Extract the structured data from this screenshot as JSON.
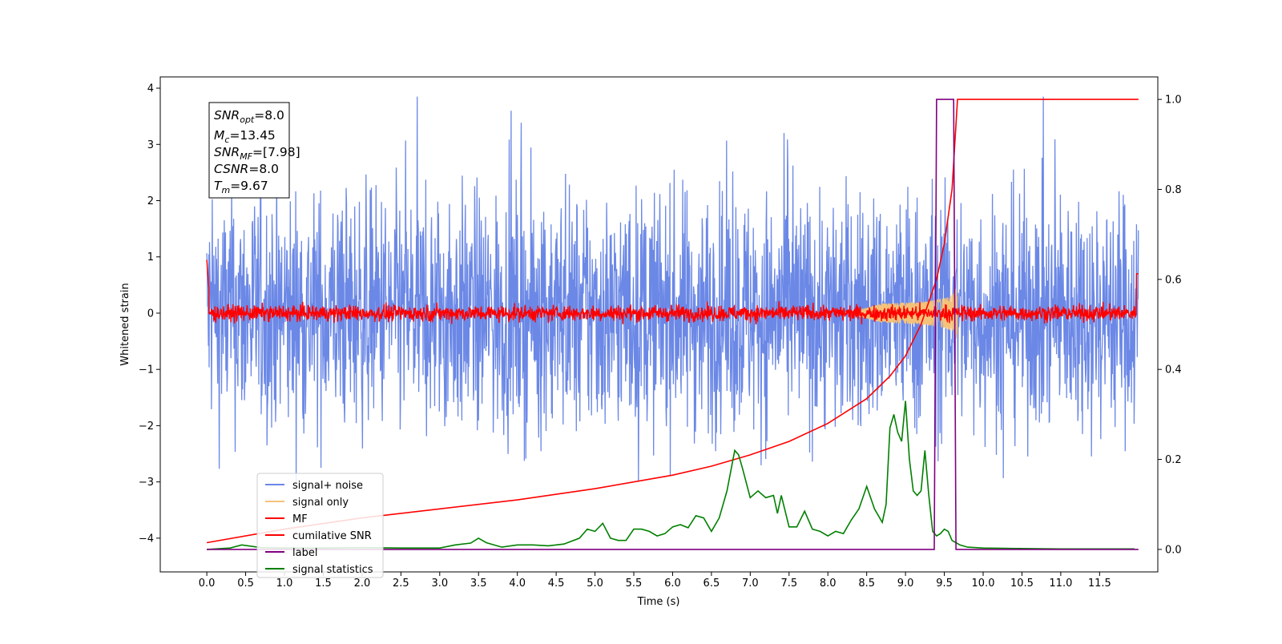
{
  "chart_data": {
    "type": "line",
    "xlabel": "Time (s)",
    "ylabel": "Whitened strain",
    "xlim": [
      -0.6,
      12.25
    ],
    "ylim": [
      -4.6,
      4.2
    ],
    "y2lim": [
      -0.05,
      1.05
    ],
    "x_ticks": [
      "0.0",
      "0.5",
      "1.0",
      "1.5",
      "2.0",
      "2.5",
      "3.0",
      "3.5",
      "4.0",
      "4.5",
      "5.0",
      "5.5",
      "6.0",
      "6.5",
      "7.0",
      "7.5",
      "8.0",
      "8.5",
      "9.0",
      "9.5",
      "10.0",
      "10.5",
      "11.0",
      "11.5"
    ],
    "y_ticks": [
      "4",
      "3",
      "2",
      "1",
      "0",
      "−1",
      "−2",
      "−3",
      "−4"
    ],
    "y2_ticks": [
      "1.0",
      "0.8",
      "0.6",
      "0.4",
      "0.2",
      "0.0"
    ],
    "legend_position": "lower-left",
    "grid": false,
    "series": [
      {
        "name": "signal+ noise",
        "color": "#6b88e6",
        "axis": "left",
        "kind": "noise",
        "x_range": [
          0.0,
          12.0
        ],
        "envelope": [
          -2.3,
          2.3
        ],
        "peak_range": [
          -4.0,
          3.85
        ]
      },
      {
        "name": "signal only",
        "color": "#f5c27a",
        "axis": "left",
        "kind": "chirp",
        "x_range": [
          8.3,
          9.67
        ],
        "amplitude_at_merger": 0.68
      },
      {
        "name": "MF",
        "color": "#ff0000",
        "axis": "left",
        "kind": "noise",
        "x_range": [
          0.0,
          12.0
        ],
        "envelope": [
          -0.18,
          0.2
        ]
      },
      {
        "name": "cumilative SNR",
        "color": "#ff0000",
        "axis": "right",
        "x": [
          0.0,
          1.0,
          2.0,
          3.0,
          4.0,
          5.0,
          6.0,
          6.5,
          7.0,
          7.5,
          8.0,
          8.5,
          8.8,
          9.0,
          9.2,
          9.4,
          9.5,
          9.6,
          9.67,
          10.0,
          11.0,
          12.0
        ],
        "y": [
          0.015,
          0.045,
          0.07,
          0.09,
          0.11,
          0.135,
          0.165,
          0.185,
          0.21,
          0.24,
          0.28,
          0.335,
          0.385,
          0.43,
          0.5,
          0.6,
          0.68,
          0.8,
          1.0,
          1.0,
          1.0,
          1.0
        ]
      },
      {
        "name": "label",
        "color": "#800080",
        "axis": "right",
        "x": [
          0.0,
          9.37,
          9.4,
          9.62,
          9.65,
          12.0
        ],
        "y": [
          0.0,
          0.0,
          1.0,
          1.0,
          0.0,
          0.0
        ]
      },
      {
        "name": "signal statistics",
        "color": "#008000",
        "axis": "right",
        "x": [
          0.0,
          0.3,
          0.45,
          0.7,
          1.0,
          1.5,
          2.0,
          2.5,
          3.0,
          3.2,
          3.4,
          3.5,
          3.6,
          3.8,
          4.0,
          4.2,
          4.4,
          4.6,
          4.8,
          4.9,
          5.0,
          5.1,
          5.2,
          5.3,
          5.4,
          5.5,
          5.6,
          5.7,
          5.8,
          5.9,
          6.0,
          6.1,
          6.2,
          6.3,
          6.4,
          6.5,
          6.6,
          6.7,
          6.8,
          6.85,
          6.9,
          7.0,
          7.1,
          7.2,
          7.3,
          7.35,
          7.4,
          7.5,
          7.6,
          7.7,
          7.8,
          7.9,
          8.0,
          8.1,
          8.2,
          8.3,
          8.4,
          8.5,
          8.6,
          8.7,
          8.75,
          8.8,
          8.85,
          8.9,
          8.95,
          9.0,
          9.05,
          9.1,
          9.15,
          9.2,
          9.25,
          9.3,
          9.35,
          9.4,
          9.45,
          9.5,
          9.55,
          9.6,
          9.65,
          9.7,
          9.8,
          10.0,
          10.5,
          11.0,
          11.5,
          11.95
        ],
        "y": [
          0.0,
          0.003,
          0.01,
          0.004,
          0.003,
          0.003,
          0.004,
          0.003,
          0.003,
          0.01,
          0.014,
          0.025,
          0.015,
          0.005,
          0.01,
          0.01,
          0.008,
          0.012,
          0.025,
          0.045,
          0.04,
          0.058,
          0.025,
          0.02,
          0.02,
          0.045,
          0.045,
          0.04,
          0.03,
          0.035,
          0.05,
          0.055,
          0.048,
          0.075,
          0.07,
          0.04,
          0.07,
          0.13,
          0.22,
          0.21,
          0.18,
          0.115,
          0.13,
          0.115,
          0.12,
          0.08,
          0.12,
          0.05,
          0.05,
          0.085,
          0.045,
          0.04,
          0.03,
          0.04,
          0.035,
          0.065,
          0.09,
          0.14,
          0.09,
          0.06,
          0.1,
          0.27,
          0.3,
          0.26,
          0.24,
          0.33,
          0.2,
          0.13,
          0.12,
          0.13,
          0.22,
          0.12,
          0.04,
          0.03,
          0.035,
          0.045,
          0.04,
          0.02,
          0.015,
          0.01,
          0.005,
          0.003,
          0.002,
          0.001,
          0.001,
          0.001
        ]
      }
    ]
  },
  "info_box": {
    "lines": [
      {
        "italic": "SNR",
        "sub": "opt",
        "rest": "=8.0"
      },
      {
        "italic": "M",
        "sub": "c",
        "rest": "=13.45"
      },
      {
        "italic": "SNR",
        "sub": "MF",
        "rest": "=[7.98]"
      },
      {
        "italic": "CSNR",
        "sub": "",
        "rest": "=8.0"
      },
      {
        "italic": "T",
        "sub": "m",
        "rest": "=9.67"
      }
    ]
  }
}
